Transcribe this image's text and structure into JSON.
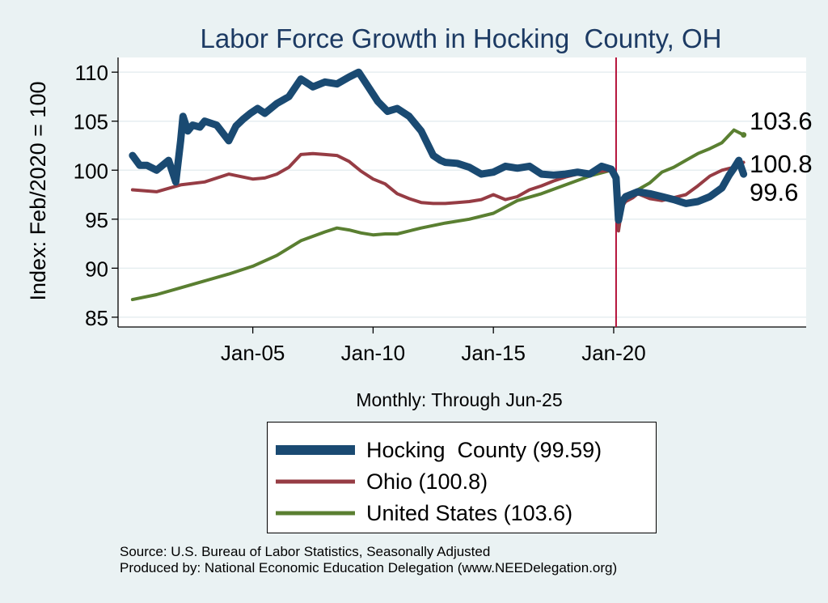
{
  "chart_data": {
    "type": "line",
    "title": "Labor Force Growth in Hocking  County, OH",
    "xlabel": "Monthly: Through Jun-25",
    "ylabel": "Index: Feb/2020 = 100",
    "xlim": [
      1999.4,
      2028.0
    ],
    "ylim": [
      84.0,
      111.5
    ],
    "yticks": [
      85,
      90,
      95,
      100,
      105,
      110
    ],
    "xticks": [
      {
        "value": 2005.0,
        "label": "Jan-05"
      },
      {
        "value": 2010.0,
        "label": "Jan-10"
      },
      {
        "value": 2015.0,
        "label": "Jan-15"
      },
      {
        "value": 2020.0,
        "label": "Jan-20"
      }
    ],
    "reference_line": {
      "x": 2020.1,
      "color": "#b5123a"
    },
    "series": [
      {
        "name": "Hocking County",
        "color": "#1a4a72",
        "x": [
          2000.0,
          2000.3,
          2000.6,
          2001.0,
          2001.5,
          2001.8,
          2002.0,
          2002.1,
          2002.3,
          2002.5,
          2002.8,
          2003.0,
          2003.5,
          2004.0,
          2004.3,
          2004.6,
          2004.9,
          2005.2,
          2005.5,
          2006.0,
          2006.5,
          2007.0,
          2007.5,
          2008.0,
          2008.5,
          2009.0,
          2009.4,
          2009.8,
          2010.2,
          2010.6,
          2011.0,
          2011.5,
          2012.0,
          2012.5,
          2012.8,
          2013.0,
          2013.5,
          2014.0,
          2014.5,
          2015.0,
          2015.5,
          2016.0,
          2016.5,
          2017.0,
          2017.5,
          2018.0,
          2018.5,
          2019.0,
          2019.5,
          2019.9,
          2020.1,
          2020.2,
          2020.35,
          2020.5,
          2020.8,
          2021.0,
          2021.5,
          2022.0,
          2022.5,
          2023.0,
          2023.5,
          2024.0,
          2024.5,
          2024.8,
          2025.0,
          2025.2,
          2025.4
        ],
        "y": [
          101.5,
          100.5,
          100.5,
          100.0,
          101.0,
          98.8,
          103.0,
          105.5,
          104.0,
          104.6,
          104.4,
          105.0,
          104.6,
          103.0,
          104.5,
          105.2,
          105.8,
          106.3,
          105.8,
          106.8,
          107.5,
          109.3,
          108.5,
          109.0,
          108.8,
          109.5,
          110.0,
          108.5,
          107.0,
          106.0,
          106.3,
          105.5,
          104.0,
          101.5,
          101.0,
          100.8,
          100.7,
          100.3,
          99.6,
          99.8,
          100.4,
          100.2,
          100.4,
          99.6,
          99.5,
          99.6,
          99.8,
          99.6,
          100.4,
          100.1,
          99.2,
          94.9,
          96.8,
          97.3,
          97.6,
          97.8,
          97.6,
          97.3,
          97.0,
          96.6,
          96.8,
          97.3,
          98.2,
          99.5,
          100.2,
          101.0,
          99.6
        ]
      },
      {
        "name": "Ohio",
        "color": "#963c44",
        "x": [
          2000.0,
          2001.0,
          2002.0,
          2003.0,
          2004.0,
          2005.0,
          2005.5,
          2006.0,
          2006.5,
          2007.0,
          2007.5,
          2008.0,
          2008.5,
          2009.0,
          2009.5,
          2010.0,
          2010.5,
          2011.0,
          2011.5,
          2012.0,
          2012.5,
          2013.0,
          2013.5,
          2014.0,
          2014.5,
          2015.0,
          2015.5,
          2016.0,
          2016.5,
          2017.0,
          2017.5,
          2018.0,
          2018.5,
          2019.0,
          2019.5,
          2019.9,
          2020.1,
          2020.2,
          2020.35,
          2020.5,
          2020.8,
          2021.0,
          2021.5,
          2022.0,
          2022.5,
          2023.0,
          2023.5,
          2024.0,
          2024.5,
          2025.0,
          2025.4
        ],
        "y": [
          98.0,
          97.8,
          98.5,
          98.8,
          99.6,
          99.1,
          99.2,
          99.6,
          100.3,
          101.6,
          101.7,
          101.6,
          101.5,
          100.9,
          99.9,
          99.1,
          98.6,
          97.6,
          97.1,
          96.7,
          96.6,
          96.6,
          96.7,
          96.8,
          97.0,
          97.5,
          97.0,
          97.3,
          98.0,
          98.4,
          98.9,
          99.3,
          99.6,
          99.8,
          99.9,
          100.0,
          99.5,
          93.8,
          96.3,
          96.8,
          97.2,
          97.6,
          97.1,
          96.9,
          97.2,
          97.5,
          98.4,
          99.4,
          100.0,
          100.3,
          100.8
        ]
      },
      {
        "name": "United States",
        "color": "#5a7f31",
        "x": [
          2000.0,
          2001.0,
          2002.0,
          2003.0,
          2004.0,
          2005.0,
          2006.0,
          2007.0,
          2008.0,
          2008.5,
          2009.0,
          2009.5,
          2010.0,
          2010.5,
          2011.0,
          2012.0,
          2013.0,
          2014.0,
          2015.0,
          2016.0,
          2017.0,
          2018.0,
          2019.0,
          2019.9,
          2020.1,
          2020.2,
          2020.35,
          2020.5,
          2021.0,
          2021.5,
          2022.0,
          2022.5,
          2023.0,
          2023.5,
          2024.0,
          2024.5,
          2025.0,
          2025.4
        ],
        "y": [
          86.8,
          87.3,
          88.0,
          88.7,
          89.4,
          90.2,
          91.3,
          92.8,
          93.7,
          94.1,
          93.9,
          93.6,
          93.4,
          93.5,
          93.5,
          94.1,
          94.6,
          95.0,
          95.6,
          96.9,
          97.6,
          98.5,
          99.4,
          100.0,
          98.8,
          95.3,
          96.8,
          97.5,
          98.0,
          98.7,
          99.8,
          100.3,
          101.0,
          101.7,
          102.2,
          102.8,
          104.1,
          103.6
        ]
      }
    ],
    "end_labels": [
      "103.6",
      "100.8",
      "99.6"
    ],
    "legend": {
      "position": "bottom",
      "entries": [
        "Hocking  County (99.59)",
        "Ohio (100.8)",
        "United States (103.6)"
      ]
    },
    "grid": true
  },
  "footer": {
    "source": "Source: U.S. Bureau of Labor Statistics, Seasonally Adjusted",
    "produced": "Produced by: National Economic Education Delegation (www.NEEDelegation.org)"
  }
}
